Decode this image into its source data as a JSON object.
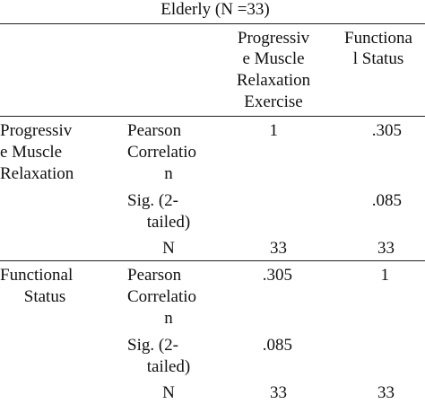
{
  "title": "Elderly (N =33)",
  "columns": {
    "col1": [
      "Progressiv",
      "e Muscle",
      "Relaxation",
      "Exercise"
    ],
    "col2": [
      "Functiona",
      "l Status"
    ]
  },
  "rows": [
    {
      "label": [
        "Progressiv",
        "e Muscle",
        "Relaxation"
      ],
      "stats": {
        "pearson": [
          "Pearson",
          "Correlatio",
          "n"
        ],
        "sig": [
          "Sig. (2-",
          "tailed)"
        ],
        "n": "N"
      },
      "values": {
        "pearson": [
          "1",
          ".305"
        ],
        "sig": [
          "",
          ".085"
        ],
        "n": [
          "33",
          "33"
        ]
      }
    },
    {
      "label": [
        "Functional",
        "Status"
      ],
      "stats": {
        "pearson": [
          "Pearson",
          "Correlatio",
          "n"
        ],
        "sig": [
          "Sig. (2-",
          "tailed)"
        ],
        "n": "N"
      },
      "values": {
        "pearson": [
          ".305",
          "1"
        ],
        "sig": [
          ".085",
          ""
        ],
        "n": [
          "33",
          "33"
        ]
      }
    }
  ]
}
